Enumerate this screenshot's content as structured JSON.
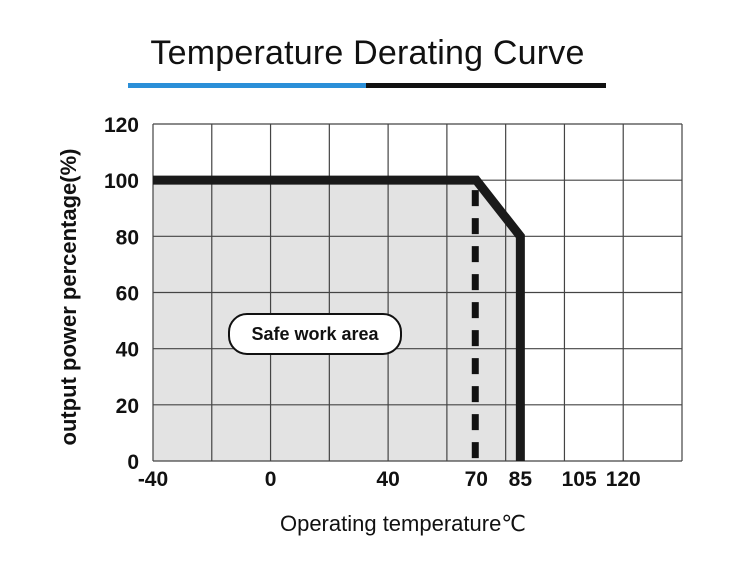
{
  "chart_data": {
    "type": "line",
    "title": "Temperature Derating Curve",
    "xlabel": "Operating temperature℃",
    "ylabel": "output power percentage(%)",
    "x_ticks": [
      "-40",
      "0",
      "40",
      "70",
      "85",
      "105",
      "120"
    ],
    "y_ticks": [
      "0",
      "20",
      "40",
      "60",
      "80",
      "100",
      "120"
    ],
    "xlim": [
      -40,
      140
    ],
    "ylim": [
      0,
      120
    ],
    "grid": true,
    "series": [
      {
        "x": [
          -40,
          70,
          85,
          85
        ],
        "y": [
          100,
          100,
          80,
          0
        ],
        "color": "#1a1a1a"
      }
    ],
    "reference_line": {
      "x": 70,
      "style": "dashed",
      "color": "#111111"
    },
    "annotation": "Safe work area",
    "colors": {
      "area_fill": "#e3e3e3",
      "grid": "#444444",
      "line": "#1a1a1a",
      "title_accent": "#2b8fd8"
    }
  }
}
